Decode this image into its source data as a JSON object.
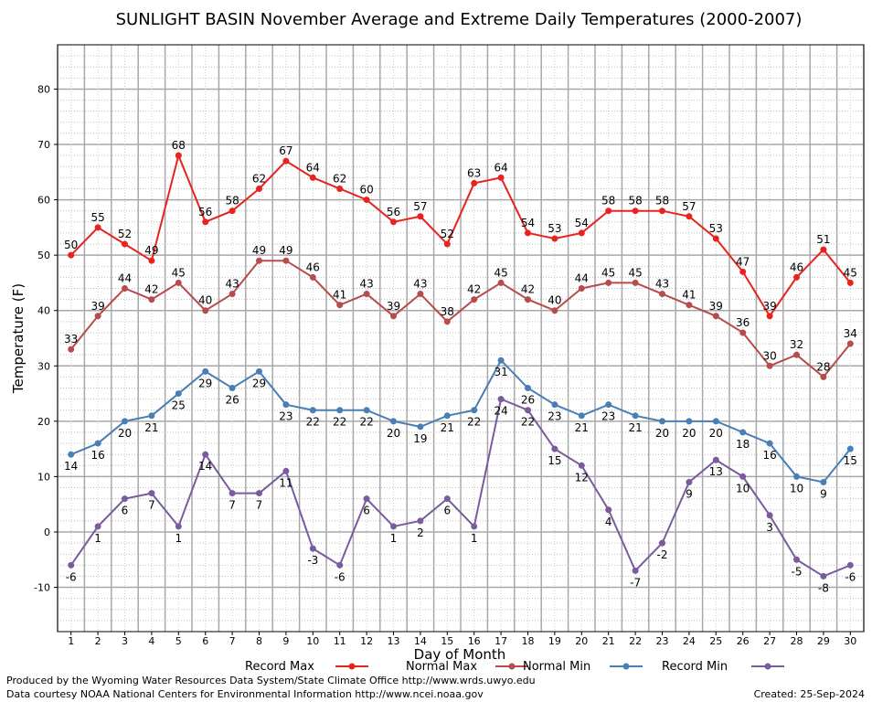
{
  "chart_data": {
    "type": "line",
    "title": "SUNLIGHT BASIN November Average and Extreme Daily Temperatures (2000-2007)",
    "xlabel": "Day of Month",
    "ylabel": "Temperature (F)",
    "ylim": [
      -18,
      88
    ],
    "yticks": [
      -10,
      0,
      10,
      20,
      30,
      40,
      50,
      60,
      70,
      80
    ],
    "x": [
      1,
      2,
      3,
      4,
      5,
      6,
      7,
      8,
      9,
      10,
      11,
      12,
      13,
      14,
      15,
      16,
      17,
      18,
      19,
      20,
      21,
      22,
      23,
      24,
      25,
      26,
      27,
      28,
      29,
      30
    ],
    "grid": true,
    "legend_position": "bottom",
    "series": [
      {
        "name": "Record Max",
        "color": "#e8231f",
        "label_position": "above",
        "values": [
          50,
          55,
          52,
          49,
          68,
          56,
          58,
          62,
          67,
          64,
          62,
          60,
          56,
          57,
          52,
          63,
          64,
          54,
          53,
          54,
          58,
          58,
          58,
          57,
          53,
          47,
          39,
          46,
          51,
          45
        ]
      },
      {
        "name": "Normal Max",
        "color": "#b74c4c",
        "label_position": "above",
        "values": [
          33,
          39,
          44,
          42,
          45,
          40,
          43,
          49,
          49,
          46,
          41,
          43,
          39,
          43,
          38,
          42,
          45,
          42,
          40,
          44,
          45,
          45,
          43,
          41,
          39,
          36,
          30,
          32,
          28,
          34
        ]
      },
      {
        "name": "Normal Min",
        "color": "#4a7fb5",
        "label_position": "below",
        "values": [
          14,
          16,
          20,
          21,
          25,
          29,
          26,
          29,
          23,
          22,
          22,
          22,
          20,
          19,
          21,
          22,
          31,
          26,
          23,
          21,
          23,
          21,
          20,
          20,
          20,
          18,
          16,
          10,
          9,
          15
        ]
      },
      {
        "name": "Record Min",
        "color": "#7a5b9e",
        "label_position": "below",
        "values": [
          -6,
          1,
          6,
          7,
          1,
          14,
          7,
          7,
          11,
          -3,
          -6,
          6,
          1,
          2,
          6,
          1,
          24,
          22,
          15,
          12,
          4,
          -7,
          -2,
          9,
          13,
          10,
          3,
          -5,
          -8,
          -6
        ]
      }
    ]
  },
  "footer": {
    "line1": "Produced by the Wyoming Water Resources Data System/State Climate Office http://www.wrds.uwyo.edu",
    "line2": "Data courtesy NOAA National Centers for Environmental Information http://www.ncei.noaa.gov",
    "created": "Created:  25-Sep-2024"
  }
}
